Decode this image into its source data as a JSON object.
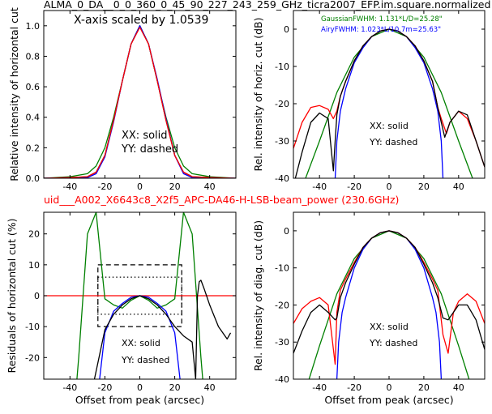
{
  "figure": {
    "title": "ALMA_0_DA__0_0_360_0_45_90_227_243_259_GHz_ticra2007_EFP.im.square.normalized",
    "subtitle": "uid___A002_X6643c8_X2f5_APC-DA46-H-LSB-beam_power (230.6GHz)",
    "subtitle_color": "#ff0000"
  },
  "chart_data": [
    {
      "id": "a",
      "type": "line",
      "xlim": [
        -55,
        55
      ],
      "ylim": [
        0,
        1.1
      ],
      "xticks": [
        -40,
        -20,
        0,
        20,
        40
      ],
      "yticks": [
        0.0,
        0.2,
        0.4,
        0.6,
        0.8,
        1.0
      ],
      "xlabel": "",
      "ylabel": "Relative intensity of horizontal cut",
      "annotations": [
        "X-axis scaled by 1.0539",
        "XX: solid",
        "YY: dashed"
      ],
      "series": [
        {
          "color": "#008000",
          "x": [
            -55,
            -40,
            -30,
            -25,
            -20,
            -15,
            -10,
            -5,
            0,
            5,
            10,
            15,
            20,
            25,
            30,
            40,
            55
          ],
          "y": [
            0.0,
            0.01,
            0.03,
            0.08,
            0.2,
            0.4,
            0.64,
            0.88,
            1.0,
            0.88,
            0.64,
            0.4,
            0.2,
            0.08,
            0.03,
            0.01,
            0.0
          ]
        },
        {
          "color": "#000000",
          "x": [
            -55,
            -40,
            -30,
            -25,
            -20,
            -15,
            -10,
            -5,
            0,
            5,
            10,
            15,
            20,
            25,
            30,
            40,
            55
          ],
          "y": [
            0.0,
            0.005,
            0.01,
            0.04,
            0.15,
            0.38,
            0.64,
            0.88,
            1.0,
            0.88,
            0.64,
            0.38,
            0.15,
            0.04,
            0.01,
            0.005,
            0.0
          ]
        },
        {
          "color": "#0000ff",
          "x": [
            -55,
            -30,
            -25,
            -20,
            -15,
            -10,
            -5,
            0,
            5,
            10,
            15,
            20,
            25,
            30,
            55
          ],
          "y": [
            0.0,
            0.005,
            0.03,
            0.14,
            0.37,
            0.64,
            0.88,
            1.0,
            0.88,
            0.65,
            0.39,
            0.15,
            0.03,
            0.005,
            0.0
          ]
        },
        {
          "color": "#ff0000",
          "x": [
            -55,
            -40,
            -30,
            -25,
            -20,
            -15,
            -10,
            -5,
            0,
            5,
            10,
            15,
            20,
            25,
            30,
            40,
            55
          ],
          "y": [
            0.0,
            0.005,
            0.01,
            0.04,
            0.15,
            0.38,
            0.64,
            0.88,
            0.99,
            0.88,
            0.64,
            0.38,
            0.15,
            0.04,
            0.01,
            0.005,
            0.0
          ]
        }
      ]
    },
    {
      "id": "b",
      "type": "line",
      "xlim": [
        -55,
        55
      ],
      "ylim": [
        -40,
        5
      ],
      "xticks": [
        -40,
        -20,
        0,
        20,
        40
      ],
      "yticks": [
        0,
        -10,
        -20,
        -30,
        -40
      ],
      "xlabel": "",
      "ylabel": "Rel. intensity of horiz. cut (dB)",
      "legend_text": [
        {
          "text": "GaussianFWHM: 1.131*L/D=25.28\"",
          "color": "#008000"
        },
        {
          "text": "AiryFWHM: 1.023*L/10.7m=25.63\"",
          "color": "#0000ff"
        }
      ],
      "annotations": [
        "XX: solid",
        "YY: dashed"
      ],
      "series": [
        {
          "color": "#008000",
          "x": [
            -48,
            -40,
            -30,
            -20,
            -10,
            0,
            10,
            20,
            30,
            40,
            48
          ],
          "y": [
            -40,
            -30,
            -17,
            -7.5,
            -2,
            0,
            -2,
            -7.5,
            -17,
            -30,
            -40
          ]
        },
        {
          "color": "#0000ff",
          "x": [
            -31,
            -30,
            -28,
            -25,
            -20,
            -15,
            -10,
            -5,
            0,
            5,
            10,
            15,
            20,
            25,
            28,
            30,
            31
          ],
          "y": [
            -40,
            -30,
            -22,
            -16,
            -9,
            -5,
            -2,
            -0.5,
            0,
            -0.5,
            -2,
            -5,
            -9,
            -16,
            -22,
            -30,
            -40
          ]
        },
        {
          "color": "#ff0000",
          "x": [
            -55,
            -50,
            -45,
            -40,
            -35,
            -32,
            -30,
            -28,
            -25,
            -20,
            -15,
            -10,
            -5,
            0,
            5,
            10,
            15,
            20,
            25,
            28,
            30,
            33,
            35,
            40,
            45,
            50,
            55
          ],
          "y": [
            -32,
            -25,
            -21,
            -20.5,
            -21.5,
            -24,
            -22,
            -18,
            -14,
            -8.5,
            -4.5,
            -2,
            -0.5,
            0,
            -0.5,
            -2,
            -4.5,
            -8.5,
            -14,
            -21,
            -24,
            -28,
            -25,
            -22,
            -24,
            -30,
            -37
          ]
        },
        {
          "color": "#000000",
          "x": [
            -55,
            -50,
            -45,
            -40,
            -35,
            -32,
            -31,
            -30,
            -28,
            -25,
            -20,
            -15,
            -10,
            -5,
            0,
            5,
            10,
            15,
            20,
            25,
            28,
            30,
            32,
            35,
            40,
            45,
            50,
            55
          ],
          "y": [
            -42,
            -33,
            -25,
            -22.5,
            -24,
            -38,
            -30,
            -23,
            -18,
            -14,
            -8.5,
            -4.5,
            -2,
            -0.5,
            0,
            -0.5,
            -2,
            -4.5,
            -8.5,
            -14,
            -21,
            -25,
            -29,
            -25,
            -22,
            -23,
            -30,
            -37
          ]
        }
      ]
    },
    {
      "id": "c",
      "type": "line",
      "xlim": [
        -55,
        55
      ],
      "ylim": [
        -27,
        27
      ],
      "xticks": [
        -40,
        -20,
        0,
        20,
        40
      ],
      "yticks": [
        20,
        10,
        0,
        -10,
        -20
      ],
      "xlabel": "Offset from peak (arcsec)",
      "ylabel": "Residuals of horizontal cut (%)",
      "annotations": [
        "XX: solid",
        "YY: dashed"
      ],
      "series": [
        {
          "color": "#ff0000",
          "x": [
            -55,
            55
          ],
          "y": [
            0,
            0
          ]
        },
        {
          "color": "#008000",
          "x": [
            -36,
            -35,
            -30,
            -25,
            -20,
            -15,
            -10,
            -5,
            0,
            5,
            10,
            15,
            20,
            25,
            30,
            35,
            36
          ],
          "y": [
            -27,
            -20,
            20,
            27,
            -1,
            -3,
            -4,
            -1.5,
            0,
            -1.5,
            -4,
            -3,
            -1,
            27,
            20,
            -20,
            -27
          ]
        },
        {
          "color": "#0000ff",
          "x": [
            -23,
            -20,
            -15,
            -10,
            -5,
            0,
            5,
            10,
            15,
            20,
            23
          ],
          "y": [
            -27,
            -12,
            -5,
            -2.5,
            -0.5,
            0,
            -0.5,
            -2.5,
            -5,
            -12,
            -27
          ]
        },
        {
          "color": "#000000",
          "x": [
            -26,
            -20,
            -15,
            -10,
            -5,
            0,
            5,
            10,
            15,
            20,
            25,
            30,
            32,
            33,
            34,
            35,
            37,
            40,
            45,
            50,
            52
          ],
          "y": [
            -27,
            -11,
            -6,
            -3,
            -1,
            0,
            -1,
            -3,
            -6,
            -10,
            -13,
            -15,
            -27,
            0,
            4.5,
            5,
            2,
            -3,
            -10,
            -14,
            -12
          ]
        }
      ],
      "boxes": [
        {
          "xlim": [
            -24,
            24
          ],
          "ylim": [
            -10,
            10
          ],
          "style": "dashed"
        },
        {
          "xlim": [
            -24,
            24
          ],
          "ylim": [
            -6,
            6
          ],
          "style": "dotted"
        }
      ]
    },
    {
      "id": "d",
      "type": "line",
      "xlim": [
        -55,
        55
      ],
      "ylim": [
        -40,
        5
      ],
      "xticks": [
        -40,
        -20,
        0,
        20,
        40
      ],
      "yticks": [
        0,
        -10,
        -20,
        -30,
        -40
      ],
      "xlabel": "Offset from peak (arcsec)",
      "ylabel": "Rel. intensity of diag. cut (dB)",
      "annotations": [
        "XX: solid",
        "YY: dashed"
      ],
      "series": [
        {
          "color": "#008000",
          "x": [
            -46,
            -40,
            -30,
            -20,
            -10,
            0,
            10,
            20,
            30,
            40,
            46
          ],
          "y": [
            -40,
            -31,
            -17,
            -7.5,
            -2,
            0,
            -2,
            -7.5,
            -17,
            -31,
            -40
          ]
        },
        {
          "color": "#0000ff",
          "x": [
            -30,
            -29,
            -27,
            -25,
            -20,
            -15,
            -10,
            -5,
            0,
            5,
            10,
            15,
            20,
            25,
            27,
            29,
            30
          ],
          "y": [
            -40,
            -30,
            -22,
            -18,
            -10,
            -5,
            -2,
            -0.5,
            0,
            -0.5,
            -2,
            -5,
            -10,
            -18,
            -22,
            -30,
            -40
          ]
        },
        {
          "color": "#ff0000",
          "x": [
            -55,
            -50,
            -45,
            -40,
            -35,
            -31,
            -30,
            -28,
            -25,
            -20,
            -15,
            -10,
            -5,
            0,
            5,
            10,
            15,
            20,
            25,
            28,
            31,
            34,
            37,
            40,
            45,
            50,
            55
          ],
          "y": [
            -25,
            -21,
            -19,
            -18,
            -20,
            -36,
            -22,
            -16,
            -13,
            -8.5,
            -4.5,
            -2,
            -0.5,
            0,
            -0.5,
            -2,
            -4.5,
            -8.5,
            -13,
            -16,
            -28,
            -33,
            -22,
            -19,
            -17,
            -19,
            -25
          ]
        },
        {
          "color": "#000000",
          "x": [
            -55,
            -50,
            -45,
            -40,
            -35,
            -31,
            -30,
            -28,
            -25,
            -20,
            -15,
            -10,
            -5,
            0,
            5,
            10,
            15,
            20,
            25,
            28,
            31,
            34,
            37,
            40,
            45,
            50,
            55
          ],
          "y": [
            -33,
            -27,
            -22,
            -20,
            -22,
            -24,
            -23.5,
            -18,
            -14,
            -9,
            -4.5,
            -2,
            -0.5,
            0,
            -0.5,
            -2,
            -4.5,
            -9,
            -14,
            -18,
            -23.5,
            -24,
            -22,
            -20,
            -20,
            -24,
            -32
          ]
        }
      ]
    }
  ]
}
